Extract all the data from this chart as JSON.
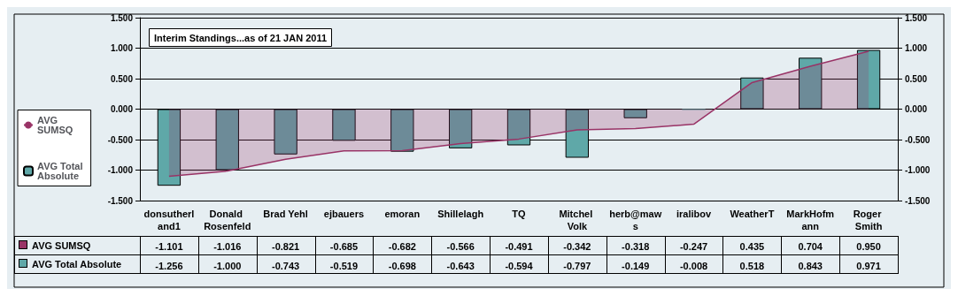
{
  "chart_data": {
    "type": "bar",
    "title": "Interim Standings...as of 21 JAN 2011",
    "categories": [
      "donsutherland1",
      "Donald Rosenfeld",
      "Brad Yehl",
      "ejbauers",
      "emoran",
      "Shillelagh",
      "TQ",
      "Mitchel Volk",
      "herb@maws",
      "iralibov",
      "WeatherT",
      "MarkHofmann",
      "Roger Smith"
    ],
    "series": [
      {
        "name": "AVG SUMSQ",
        "type": "area",
        "color": "#993366",
        "values": [
          -1.101,
          -1.016,
          -0.821,
          -0.685,
          -0.682,
          -0.566,
          -0.491,
          -0.342,
          -0.318,
          -0.247,
          0.435,
          0.704,
          0.95
        ],
        "value_labels": [
          "-1.101",
          "-1.016",
          "-0.821",
          "-0.685",
          "-0.682",
          "-0.566",
          "-0.491",
          "-0.342",
          "-0.318",
          "-0.247",
          "0.435",
          "0.704",
          "0.950"
        ]
      },
      {
        "name": "AVG Total Absolute",
        "color": "#5fa8a8",
        "values": [
          -1.256,
          -1.0,
          -0.743,
          -0.519,
          -0.698,
          -0.643,
          -0.594,
          -0.797,
          -0.149,
          -0.008,
          0.518,
          0.843,
          0.971
        ],
        "value_labels": [
          "-1.256",
          "-1.000",
          "-0.743",
          "-0.519",
          "-0.698",
          "-0.643",
          "-0.594",
          "-0.797",
          "-0.149",
          "-0.008",
          "0.518",
          "0.843",
          "0.971"
        ]
      }
    ],
    "ylim": [
      -1.5,
      1.5
    ],
    "yticks": [
      {
        "value": -1.5,
        "label": "-1.500"
      },
      {
        "value": -1,
        "label": "-1.000"
      },
      {
        "value": -0.5,
        "label": "-0.500"
      },
      {
        "value": 0,
        "label": "0.000"
      },
      {
        "value": 0.5,
        "label": "0.500"
      },
      {
        "value": 1,
        "label": "1.000"
      },
      {
        "value": 1.5,
        "label": "1.500"
      }
    ],
    "y2lim": [
      -1.5,
      1.5
    ],
    "y2ticks": [
      {
        "value": -1.5,
        "label": "-1.500"
      },
      {
        "value": -1,
        "label": "-1.000"
      },
      {
        "value": -0.5,
        "label": "-0.500"
      },
      {
        "value": 0,
        "label": "0.000"
      },
      {
        "value": 0.5,
        "label": "0.500"
      },
      {
        "value": 1,
        "label": "1.000"
      },
      {
        "value": 1.5,
        "label": "1.500"
      }
    ],
    "grid": "y",
    "legend": "left"
  }
}
